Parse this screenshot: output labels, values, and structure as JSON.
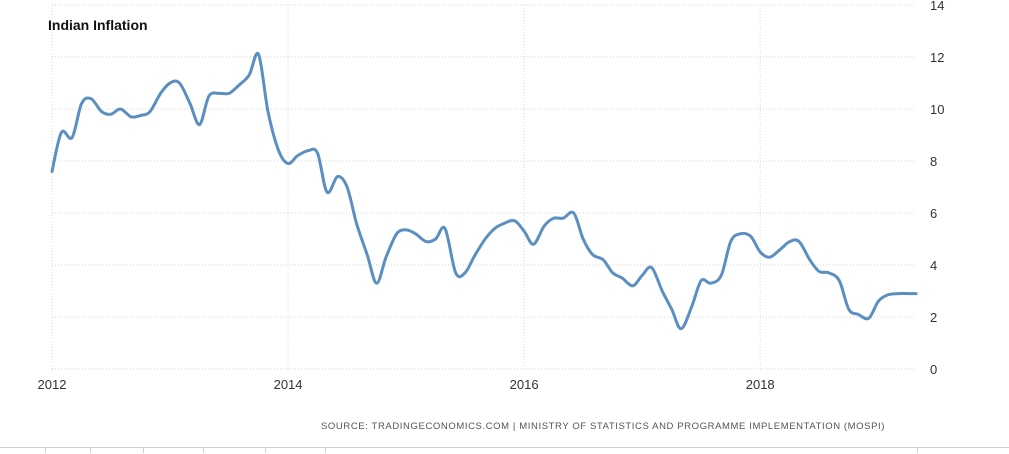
{
  "chart_data": {
    "type": "line",
    "title": "Indian Inflation",
    "xlabel": "",
    "ylabel": "",
    "xlim": [
      2012.0,
      2019.32
    ],
    "ylim": [
      0,
      14
    ],
    "x_ticks": [
      2012,
      2014,
      2016,
      2018
    ],
    "y_ticks": [
      0,
      2,
      4,
      6,
      8,
      10,
      12,
      14
    ],
    "grid": true,
    "series": [
      {
        "color": "#5b8fc2",
        "x": [
          2012.0,
          2012.08,
          2012.17,
          2012.25,
          2012.33,
          2012.42,
          2012.5,
          2012.58,
          2012.67,
          2012.75,
          2012.83,
          2012.92,
          2013.0,
          2013.08,
          2013.17,
          2013.25,
          2013.33,
          2013.42,
          2013.5,
          2013.58,
          2013.67,
          2013.75,
          2013.83,
          2013.92,
          2014.0,
          2014.08,
          2014.17,
          2014.25,
          2014.33,
          2014.42,
          2014.5,
          2014.58,
          2014.67,
          2014.75,
          2014.83,
          2014.92,
          2015.0,
          2015.08,
          2015.17,
          2015.25,
          2015.33,
          2015.42,
          2015.5,
          2015.58,
          2015.67,
          2015.75,
          2015.83,
          2015.92,
          2016.0,
          2016.08,
          2016.17,
          2016.25,
          2016.33,
          2016.42,
          2016.5,
          2016.58,
          2016.67,
          2016.75,
          2016.83,
          2016.92,
          2017.0,
          2017.08,
          2017.17,
          2017.25,
          2017.33,
          2017.42,
          2017.5,
          2017.58,
          2017.67,
          2017.75,
          2017.83,
          2017.92,
          2018.0,
          2018.08,
          2018.17,
          2018.25,
          2018.33,
          2018.42,
          2018.5,
          2018.58,
          2018.67,
          2018.75,
          2018.83,
          2018.92,
          2019.0,
          2019.08,
          2019.17,
          2019.25,
          2019.32
        ],
        "values": [
          7.6,
          9.1,
          8.9,
          10.2,
          10.4,
          9.9,
          9.8,
          10.0,
          9.7,
          9.75,
          9.9,
          10.6,
          11.0,
          11.0,
          10.2,
          9.4,
          10.5,
          10.6,
          10.6,
          10.9,
          11.3,
          12.1,
          9.9,
          8.4,
          7.9,
          8.2,
          8.4,
          8.3,
          6.8,
          7.4,
          7.0,
          5.6,
          4.4,
          3.3,
          4.3,
          5.2,
          5.35,
          5.2,
          4.9,
          5.0,
          5.4,
          3.7,
          3.7,
          4.35,
          5.0,
          5.4,
          5.6,
          5.7,
          5.3,
          4.8,
          5.5,
          5.8,
          5.8,
          6.0,
          5.0,
          4.4,
          4.2,
          3.7,
          3.5,
          3.2,
          3.6,
          3.9,
          3.0,
          2.3,
          1.55,
          2.4,
          3.4,
          3.3,
          3.6,
          4.9,
          5.2,
          5.1,
          4.5,
          4.3,
          4.6,
          4.9,
          4.9,
          4.2,
          3.75,
          3.7,
          3.4,
          2.3,
          2.1,
          1.95,
          2.6,
          2.85,
          2.9,
          2.9,
          2.9
        ]
      }
    ]
  },
  "source_text": "SOURCE: TRADINGECONOMICS.COM | MINISTRY OF STATISTICS AND PROGRAMME IMPLEMENTATION (MOSPI)"
}
